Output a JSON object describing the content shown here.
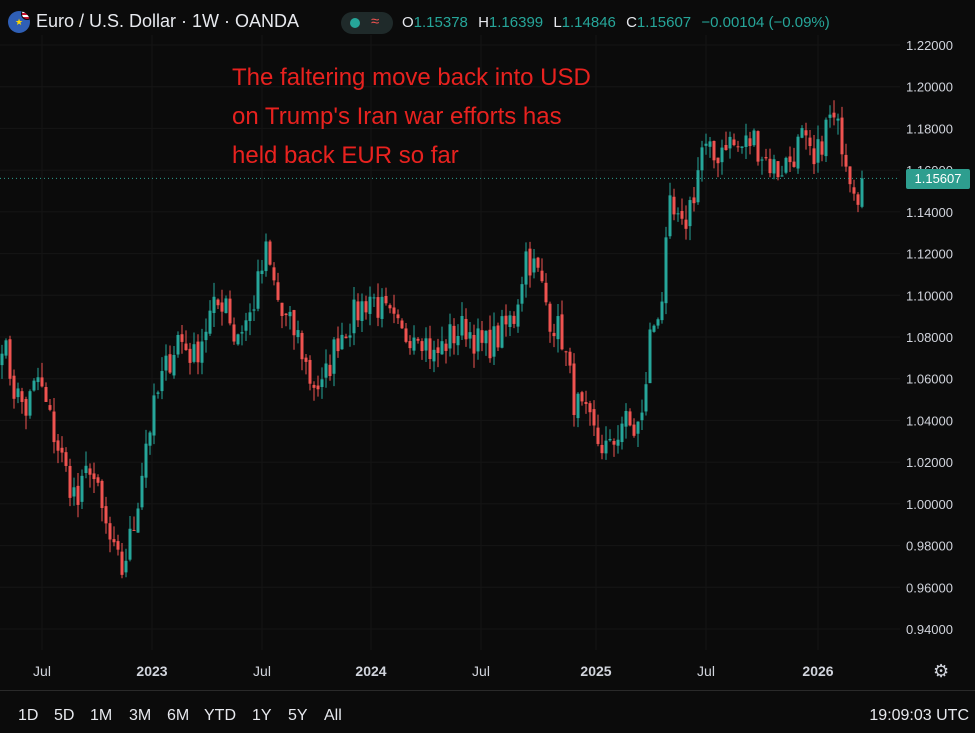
{
  "header": {
    "symbol_title": "Euro / U.S. Dollar · 1W · OANDA",
    "ohlc": {
      "open_label": "O",
      "open": "1.15378",
      "high_label": "H",
      "high": "1.16399",
      "low_label": "L",
      "low": "1.14846",
      "close_label": "C",
      "close": "1.15607",
      "change": "−0.00104 (−0.09%)"
    },
    "icons": [
      "eu-us-flag-icon",
      "status-dot-icon",
      "wave-icon"
    ]
  },
  "annotation": {
    "lines": [
      "The faltering move back into USD",
      "on Trump's Iran war efforts has",
      "held back EUR so far"
    ]
  },
  "price_tag": "1.15607",
  "bottom_bar": {
    "ranges": [
      "1D",
      "5D",
      "1M",
      "3M",
      "6M",
      "YTD",
      "1Y",
      "5Y",
      "All"
    ],
    "time": "19:09:03 UTC"
  },
  "colors": {
    "up": "#26a69a",
    "down": "#ef5350",
    "annotation": "#e8221f",
    "background": "#0b0b0b"
  },
  "chart_data": {
    "type": "candlestick",
    "y_ticks": [
      "1.22000",
      "1.20000",
      "1.18000",
      "1.16000",
      "1.14000",
      "1.12000",
      "1.10000",
      "1.08000",
      "1.06000",
      "1.04000",
      "1.02000",
      "1.00000",
      "0.98000",
      "0.96000",
      "0.94000"
    ],
    "ylim": [
      0.925,
      1.225
    ],
    "x_ticks": [
      "Jul",
      "2023",
      "Jul",
      "2024",
      "Jul",
      "2025",
      "Jul",
      "2026"
    ],
    "last_price": 1.15607,
    "anchors": [
      [
        0,
        1.08
      ],
      [
        3,
        1.055
      ],
      [
        6,
        1.045
      ],
      [
        9,
        1.06
      ],
      [
        12,
        1.04
      ],
      [
        16,
        1.015
      ],
      [
        19,
        1.0
      ],
      [
        22,
        1.02
      ],
      [
        25,
        0.995
      ],
      [
        28,
        0.975
      ],
      [
        30,
        0.968
      ],
      [
        33,
        0.99
      ],
      [
        36,
        1.03
      ],
      [
        40,
        1.06
      ],
      [
        44,
        1.08
      ],
      [
        48,
        1.07
      ],
      [
        52,
        1.09
      ],
      [
        56,
        1.1
      ],
      [
        58,
        1.08
      ],
      [
        62,
        1.09
      ],
      [
        66,
        1.12
      ],
      [
        70,
        1.09
      ],
      [
        74,
        1.08
      ],
      [
        77,
        1.06
      ],
      [
        80,
        1.055
      ],
      [
        84,
        1.08
      ],
      [
        88,
        1.09
      ],
      [
        92,
        1.1
      ],
      [
        96,
        1.09
      ],
      [
        100,
        1.08
      ],
      [
        104,
        1.085
      ],
      [
        108,
        1.07
      ],
      [
        112,
        1.08
      ],
      [
        116,
        1.085
      ],
      [
        120,
        1.075
      ],
      [
        124,
        1.08
      ],
      [
        128,
        1.09
      ],
      [
        131,
        1.12
      ],
      [
        134,
        1.11
      ],
      [
        137,
        1.09
      ],
      [
        140,
        1.08
      ],
      [
        143,
        1.05
      ],
      [
        146,
        1.04
      ],
      [
        149,
        1.03
      ],
      [
        152,
        1.025
      ],
      [
        155,
        1.04
      ],
      [
        158,
        1.035
      ],
      [
        160,
        1.04
      ],
      [
        162,
        1.08
      ],
      [
        165,
        1.1
      ],
      [
        167,
        1.14
      ],
      [
        170,
        1.13
      ],
      [
        173,
        1.15
      ],
      [
        175,
        1.17
      ],
      [
        178,
        1.165
      ],
      [
        181,
        1.175
      ],
      [
        184,
        1.17
      ],
      [
        188,
        1.175
      ],
      [
        191,
        1.165
      ],
      [
        194,
        1.16
      ],
      [
        197,
        1.165
      ],
      [
        200,
        1.175
      ],
      [
        203,
        1.16
      ],
      [
        205,
        1.175
      ],
      [
        207,
        1.185
      ],
      [
        210,
        1.175
      ],
      [
        212,
        1.16
      ],
      [
        214,
        1.15
      ],
      [
        215,
        1.156
      ]
    ]
  }
}
